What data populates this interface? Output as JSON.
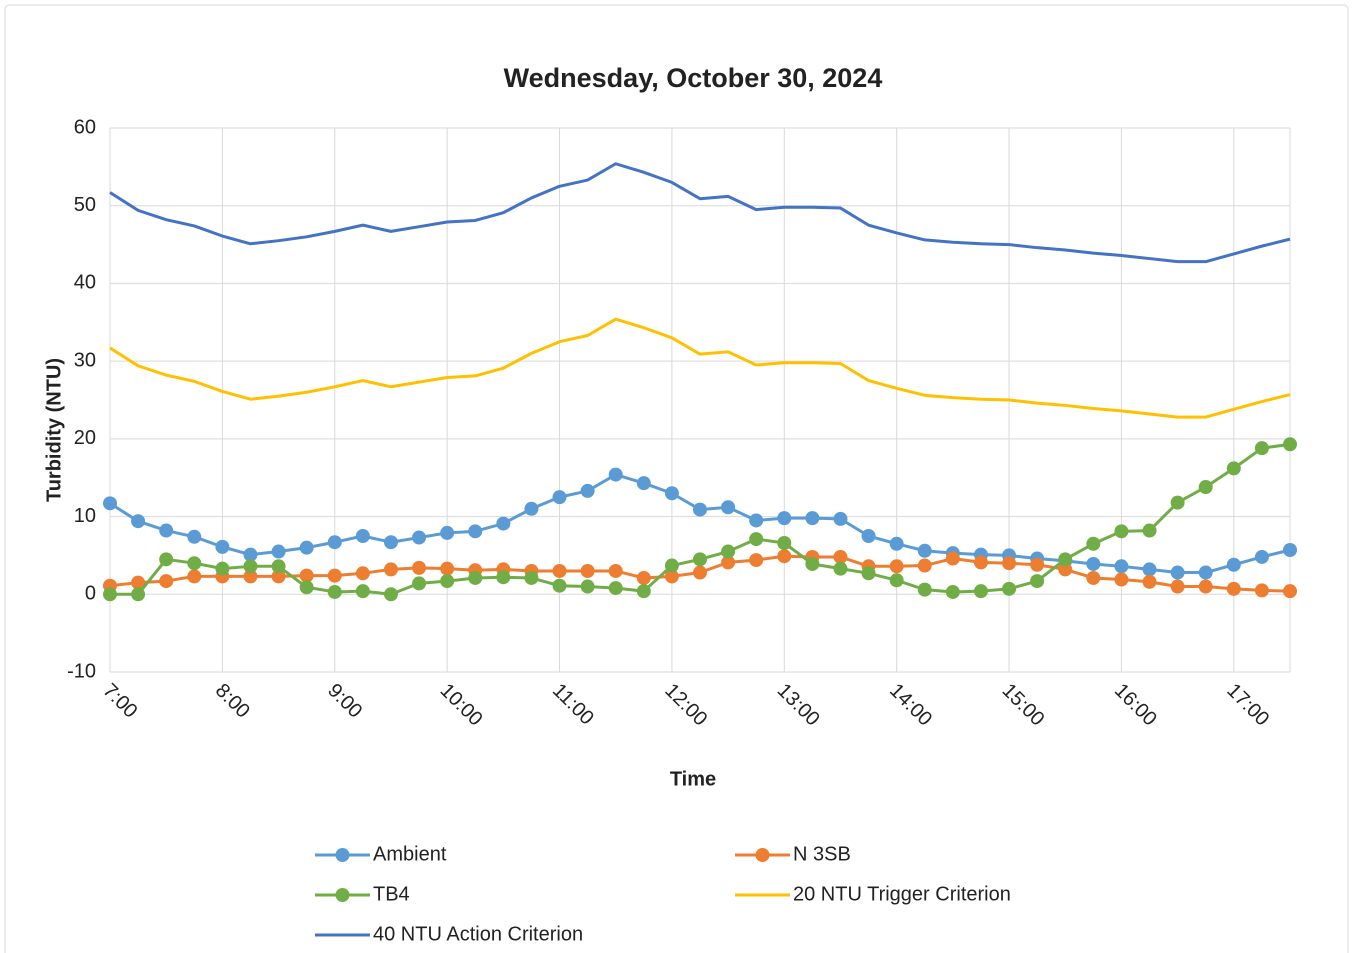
{
  "chart_data": {
    "type": "line",
    "title": "Wednesday, October 30, 2024",
    "x_label": "Time",
    "y_label": "Turbidity (NTU)",
    "categories": [
      "7:00",
      null,
      null,
      null,
      "8:00",
      null,
      null,
      null,
      "9:00",
      null,
      null,
      null,
      "10:00",
      null,
      null,
      null,
      "11:00",
      null,
      null,
      null,
      "12:00",
      null,
      null,
      null,
      "13:00",
      null,
      null,
      null,
      "14:00",
      null,
      null,
      null,
      "15:00",
      null,
      null,
      null,
      "16:00",
      null,
      null,
      null,
      "17:00",
      null,
      null
    ],
    "ylim": [
      -10,
      60
    ],
    "yticks": [
      -10,
      0,
      10,
      20,
      30,
      40,
      50,
      60
    ],
    "grid": true,
    "legend": "bottom",
    "series": [
      {
        "name": "Ambient",
        "color": "#5b9bd5",
        "markers": true,
        "values": [
          11.7,
          9.4,
          8.2,
          7.4,
          6.1,
          5.1,
          5.5,
          6.0,
          6.7,
          7.5,
          6.7,
          7.3,
          7.9,
          8.1,
          9.1,
          11.0,
          12.5,
          13.3,
          15.4,
          14.3,
          13.0,
          10.9,
          11.2,
          9.5,
          9.8,
          9.8,
          9.7,
          7.5,
          6.5,
          5.6,
          5.3,
          5.1,
          5.0,
          4.6,
          4.3,
          3.9,
          3.6,
          3.2,
          2.8,
          2.8,
          3.8,
          4.8,
          5.7
        ]
      },
      {
        "name": "N 3SB",
        "color": "#ed7d31",
        "markers": true,
        "values": [
          1.1,
          1.5,
          1.7,
          2.3,
          2.3,
          2.3,
          2.3,
          2.4,
          2.4,
          2.7,
          3.2,
          3.4,
          3.3,
          3.1,
          3.2,
          3.0,
          3.0,
          3.0,
          3.0,
          2.1,
          2.3,
          2.8,
          4.1,
          4.4,
          4.9,
          4.8,
          4.8,
          3.6,
          3.6,
          3.7,
          4.6,
          4.1,
          4.0,
          3.8,
          3.2,
          2.1,
          1.9,
          1.6,
          1.0,
          1.0,
          0.7,
          0.5,
          0.4
        ]
      },
      {
        "name": "TB4",
        "color": "#70ad47",
        "markers": true,
        "values": [
          0.0,
          0.0,
          4.5,
          4.0,
          3.3,
          3.6,
          3.6,
          0.9,
          0.3,
          0.4,
          0.0,
          1.4,
          1.7,
          2.1,
          2.2,
          2.1,
          1.1,
          1.0,
          0.8,
          0.4,
          3.7,
          4.5,
          5.5,
          7.1,
          6.6,
          3.9,
          3.3,
          2.7,
          1.8,
          0.6,
          0.3,
          0.4,
          0.7,
          1.7,
          4.5,
          6.5,
          8.1,
          8.2,
          11.8,
          13.8,
          16.2,
          18.8,
          19.3
        ]
      },
      {
        "name": "20 NTU Trigger Criterion",
        "color": "#ffc000",
        "markers": false,
        "values": [
          31.7,
          29.4,
          28.2,
          27.4,
          26.1,
          25.1,
          25.5,
          26.0,
          26.7,
          27.5,
          26.7,
          27.3,
          27.9,
          28.1,
          29.1,
          31.0,
          32.5,
          33.3,
          35.4,
          34.3,
          33.0,
          30.9,
          31.2,
          29.5,
          29.8,
          29.8,
          29.7,
          27.5,
          26.5,
          25.6,
          25.3,
          25.1,
          25.0,
          24.6,
          24.3,
          23.9,
          23.6,
          23.2,
          22.8,
          22.8,
          23.8,
          24.8,
          25.7
        ]
      },
      {
        "name": "40 NTU Action Criterion",
        "color": "#4472c4",
        "markers": false,
        "values": [
          51.7,
          49.4,
          48.2,
          47.4,
          46.1,
          45.1,
          45.5,
          46.0,
          46.7,
          47.5,
          46.7,
          47.3,
          47.9,
          48.1,
          49.1,
          51.0,
          52.5,
          53.3,
          55.4,
          54.3,
          53.0,
          50.9,
          51.2,
          49.5,
          49.8,
          49.8,
          49.7,
          47.5,
          46.5,
          45.6,
          45.3,
          45.1,
          45.0,
          44.6,
          44.3,
          43.9,
          43.6,
          43.2,
          42.8,
          42.8,
          43.8,
          44.8,
          45.7
        ]
      }
    ]
  }
}
